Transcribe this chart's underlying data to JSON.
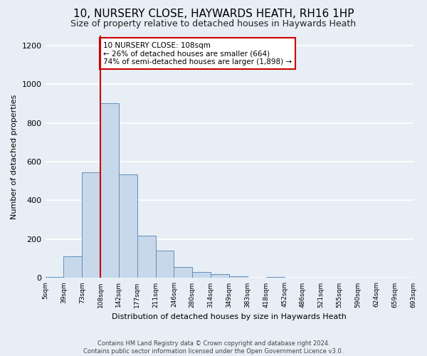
{
  "title": "10, NURSERY CLOSE, HAYWARDS HEATH, RH16 1HP",
  "subtitle": "Size of property relative to detached houses in Haywards Heath",
  "xlabel": "Distribution of detached houses by size in Haywards Heath",
  "ylabel": "Number of detached properties",
  "footer": "Contains HM Land Registry data © Crown copyright and database right 2024.\nContains public sector information licensed under the Open Government Licence v3.0.",
  "bin_labels": [
    "5sqm",
    "39sqm",
    "73sqm",
    "108sqm",
    "142sqm",
    "177sqm",
    "211sqm",
    "246sqm",
    "280sqm",
    "314sqm",
    "349sqm",
    "383sqm",
    "418sqm",
    "452sqm",
    "486sqm",
    "521sqm",
    "555sqm",
    "590sqm",
    "624sqm",
    "659sqm",
    "693sqm"
  ],
  "bar_heights": [
    5,
    110,
    545,
    900,
    535,
    220,
    140,
    55,
    32,
    20,
    10,
    0,
    5,
    0,
    0,
    0,
    0,
    0,
    0,
    0
  ],
  "bar_color": "#c8d8eb",
  "bar_edge_color": "#6090bb",
  "vline_color": "#cc0000",
  "annotation_text": "10 NURSERY CLOSE: 108sqm\n← 26% of detached houses are smaller (664)\n74% of semi-detached houses are larger (1,898) →",
  "annotation_box_color": "#ffffff",
  "annotation_box_edge": "#cc0000",
  "ylim": [
    0,
    1250
  ],
  "yticks": [
    0,
    200,
    400,
    600,
    800,
    1000,
    1200
  ],
  "bg_color": "#e8eef5",
  "plot_bg_color": "#e8eef5",
  "grid_color": "#ffffff",
  "title_fontsize": 11,
  "subtitle_fontsize": 9,
  "title_fontweight": "normal"
}
